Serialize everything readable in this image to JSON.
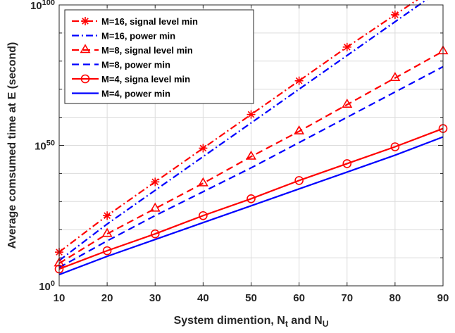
{
  "chart_data": {
    "type": "line",
    "xlabel": {
      "main": "System dimention, N",
      "sub1": "t",
      "mid": " and N",
      "sub2": "U"
    },
    "ylabel": "Average comsumed time at E (second)",
    "x_ticks": [
      10,
      20,
      30,
      40,
      50,
      60,
      70,
      80,
      90
    ],
    "xlim": [
      10,
      90
    ],
    "y_scale": "log",
    "ylim_log10": [
      0,
      100
    ],
    "y_ticks": [
      {
        "base": "10",
        "exp": "0",
        "log10": 0
      },
      {
        "base": "10",
        "exp": "50",
        "log10": 50
      },
      {
        "base": "10",
        "exp": "100",
        "log10": 100
      }
    ],
    "grid": true,
    "legend_position": "top-left",
    "x": [
      10,
      20,
      30,
      40,
      50,
      60,
      70,
      80,
      90
    ],
    "series": [
      {
        "name": "M=16, signal level min",
        "color": "#ff0000",
        "dash": "dashdot",
        "marker": "asterisk",
        "log10_values": [
          12,
          25,
          37,
          49,
          61,
          73,
          85,
          96.5,
          108
        ]
      },
      {
        "name": "M=16, power min",
        "color": "#0000ff",
        "dash": "dashdot",
        "marker": "none",
        "log10_values": [
          9,
          22,
          34,
          46,
          58,
          70,
          82,
          94,
          106
        ]
      },
      {
        "name": "M=8, signal level min",
        "color": "#ff0000",
        "dash": "dash",
        "marker": "triangle",
        "log10_values": [
          8,
          18.5,
          27.5,
          36.5,
          46,
          55,
          64.5,
          74,
          83.5
        ]
      },
      {
        "name": "M=8, power min",
        "color": "#0000ff",
        "dash": "dash",
        "marker": "none",
        "log10_values": [
          6.5,
          16,
          25,
          33.5,
          42,
          51,
          60,
          69,
          78
        ]
      },
      {
        "name": "M=4, signa level min",
        "color": "#ff0000",
        "dash": "solid",
        "marker": "circle",
        "log10_values": [
          6,
          12.5,
          18.5,
          25,
          31,
          37.5,
          43.5,
          49.5,
          56
        ]
      },
      {
        "name": "M=4, power min",
        "color": "#0000ff",
        "dash": "solid",
        "marker": "none",
        "log10_values": [
          4,
          10.5,
          16.5,
          22.5,
          28.5,
          34.5,
          40.5,
          46.5,
          53
        ]
      }
    ]
  }
}
